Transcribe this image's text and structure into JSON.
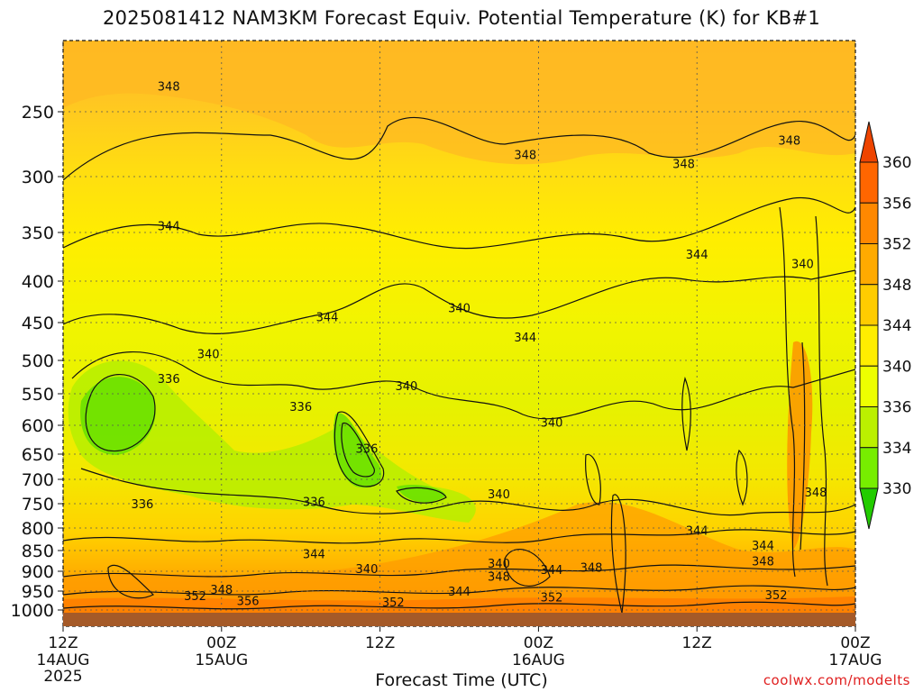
{
  "title": "2025081412 NAM3KM Forecast Equiv. Potential Temperature (K) for KB#1",
  "xlabel": "Forecast Time (UTC)",
  "credit": "coolwx.com/modelts",
  "chart_data": {
    "type": "heatmap",
    "variable": "Equivalent Potential Temperature (K)",
    "x_ticks": [
      {
        "hour": 0,
        "label": "12Z",
        "date": "14AUG",
        "year": "2025"
      },
      {
        "hour": 12,
        "label": "00Z",
        "date": "15AUG",
        "year": ""
      },
      {
        "hour": 24,
        "label": "12Z",
        "date": "",
        "year": ""
      },
      {
        "hour": 36,
        "label": "00Z",
        "date": "16AUG",
        "year": ""
      },
      {
        "hour": 48,
        "label": "12Z",
        "date": "",
        "year": ""
      },
      {
        "hour": 60,
        "label": "00Z",
        "date": "17AUG",
        "year": ""
      }
    ],
    "y_ticks": [
      250,
      300,
      350,
      400,
      450,
      500,
      550,
      600,
      650,
      700,
      750,
      800,
      850,
      900,
      950,
      1000
    ],
    "ylim": [
      200,
      1025
    ],
    "xlim": [
      0,
      60
    ],
    "grid": true,
    "colorbar_levels": [
      330,
      334,
      336,
      340,
      344,
      348,
      352,
      356,
      360
    ],
    "colorbar_colors": [
      "#22cc00",
      "#77ee00",
      "#bbf000",
      "#eeff00",
      "#ffee00",
      "#ffcc00",
      "#ffaa00",
      "#ff8800",
      "#ff6600",
      "#ee4400"
    ],
    "contour_labels": [
      {
        "text": "348",
        "x": 8,
        "p": 232
      },
      {
        "text": "348",
        "x": 35,
        "p": 283
      },
      {
        "text": "348",
        "x": 47,
        "p": 290
      },
      {
        "text": "348",
        "x": 55,
        "p": 272
      },
      {
        "text": "344",
        "x": 8,
        "p": 344
      },
      {
        "text": "344",
        "x": 48,
        "p": 372
      },
      {
        "text": "344",
        "x": 20,
        "p": 443
      },
      {
        "text": "344",
        "x": 35,
        "p": 469
      },
      {
        "text": "340",
        "x": 11,
        "p": 491
      },
      {
        "text": "340",
        "x": 30,
        "p": 432
      },
      {
        "text": "340",
        "x": 26,
        "p": 538
      },
      {
        "text": "340",
        "x": 37,
        "p": 595
      },
      {
        "text": "340",
        "x": 56,
        "p": 382
      },
      {
        "text": "340",
        "x": 33,
        "p": 730
      },
      {
        "text": "340",
        "x": 33,
        "p": 880
      },
      {
        "text": "336",
        "x": 8,
        "p": 527
      },
      {
        "text": "336",
        "x": 18,
        "p": 570
      },
      {
        "text": "336",
        "x": 23,
        "p": 640
      },
      {
        "text": "336",
        "x": 6,
        "p": 750
      },
      {
        "text": "336",
        "x": 19,
        "p": 745
      },
      {
        "text": "344",
        "x": 19,
        "p": 858
      },
      {
        "text": "344",
        "x": 48,
        "p": 805
      },
      {
        "text": "344",
        "x": 53,
        "p": 838
      },
      {
        "text": "348",
        "x": 57,
        "p": 726
      },
      {
        "text": "348",
        "x": 53,
        "p": 875
      },
      {
        "text": "348",
        "x": 12,
        "p": 946
      },
      {
        "text": "348",
        "x": 33,
        "p": 912
      },
      {
        "text": "348",
        "x": 40,
        "p": 890
      },
      {
        "text": "344",
        "x": 37,
        "p": 896
      },
      {
        "text": "344",
        "x": 30,
        "p": 950
      },
      {
        "text": "340",
        "x": 23,
        "p": 893
      },
      {
        "text": "352",
        "x": 10,
        "p": 962
      },
      {
        "text": "356",
        "x": 14,
        "p": 975
      },
      {
        "text": "352",
        "x": 25,
        "p": 978
      },
      {
        "text": "352",
        "x": 37,
        "p": 965
      },
      {
        "text": "352",
        "x": 54,
        "p": 960
      }
    ]
  }
}
